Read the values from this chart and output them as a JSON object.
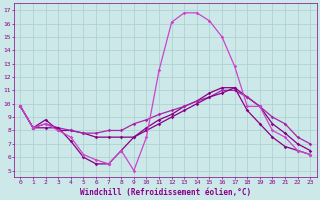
{
  "xlabel": "Windchill (Refroidissement éolien,°C)",
  "xlim": [
    -0.5,
    23.5
  ],
  "ylim": [
    4.5,
    17.5
  ],
  "xticks": [
    0,
    1,
    2,
    3,
    4,
    5,
    6,
    7,
    8,
    9,
    10,
    11,
    12,
    13,
    14,
    15,
    16,
    17,
    18,
    19,
    20,
    21,
    22,
    23
  ],
  "yticks": [
    5,
    6,
    7,
    8,
    9,
    10,
    11,
    12,
    13,
    14,
    15,
    16,
    17
  ],
  "background_color": "#cce8e8",
  "grid_color": "#aacece",
  "line_color_dark": "#880088",
  "line_color_mid": "#aa22aa",
  "line_color_bright": "#cc44cc",
  "curve1_x": [
    0,
    1,
    2,
    3,
    4,
    5,
    6,
    7,
    8,
    9,
    10,
    11,
    12,
    13,
    14,
    15,
    16,
    17,
    18,
    19,
    20,
    21,
    22,
    23
  ],
  "curve1_y": [
    9.8,
    8.2,
    8.5,
    8.0,
    7.5,
    6.2,
    5.8,
    5.5,
    6.5,
    5.0,
    7.5,
    12.5,
    16.1,
    16.8,
    16.8,
    16.2,
    15.0,
    12.8,
    9.8,
    9.8,
    8.0,
    7.5,
    6.5,
    6.2
  ],
  "curve2_x": [
    0,
    1,
    2,
    3,
    4,
    5,
    6,
    7,
    8,
    9,
    10,
    11,
    12,
    13,
    14,
    15,
    16,
    17,
    18,
    19,
    20,
    21,
    22,
    23
  ],
  "curve2_y": [
    9.8,
    8.2,
    8.8,
    8.0,
    8.0,
    7.8,
    7.5,
    7.5,
    7.5,
    7.5,
    8.2,
    8.8,
    9.2,
    9.8,
    10.2,
    10.8,
    11.2,
    11.2,
    10.5,
    9.8,
    8.5,
    7.8,
    7.0,
    6.5
  ],
  "curve3_x": [
    0,
    1,
    2,
    3,
    4,
    5,
    6,
    7,
    8,
    9,
    10,
    11,
    12,
    13,
    14,
    15,
    16,
    17,
    18,
    19,
    20,
    21,
    22,
    23
  ],
  "curve3_y": [
    9.8,
    8.2,
    8.5,
    8.2,
    8.0,
    7.8,
    7.8,
    8.0,
    8.0,
    8.5,
    8.8,
    9.2,
    9.5,
    9.8,
    10.2,
    10.5,
    11.0,
    11.0,
    10.5,
    9.8,
    9.0,
    8.5,
    7.5,
    7.0
  ],
  "curve4_x": [
    0,
    1,
    2,
    3,
    4,
    5,
    6,
    7,
    8,
    9,
    10,
    11,
    12,
    13,
    14,
    15,
    16,
    17,
    18,
    19,
    20,
    21,
    22,
    23
  ],
  "curve4_y": [
    9.8,
    8.2,
    8.2,
    8.2,
    7.2,
    6.0,
    5.5,
    5.5,
    6.5,
    7.5,
    8.0,
    8.5,
    9.0,
    9.5,
    10.0,
    10.5,
    10.8,
    11.2,
    9.5,
    8.5,
    7.5,
    6.8,
    6.5,
    6.2
  ]
}
